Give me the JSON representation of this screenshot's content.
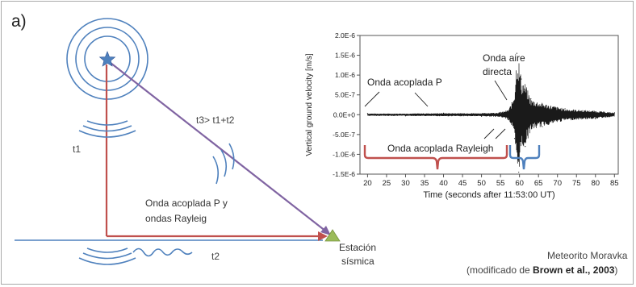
{
  "panel_label": "a)",
  "left_diagram": {
    "t1_label": "t1",
    "t3_label": "t3> t1+t2",
    "t2_label": "t2",
    "wave_label_line1": "Onda acoplada P y",
    "wave_label_line2": "ondas Rayleig",
    "station_line1": "Estación",
    "station_line2": "sísmica"
  },
  "seismogram": {
    "ylabel": "Vertical ground velocity [m/s]",
    "xlabel": "Time (seconds after 11:53:00 UT)",
    "annotation_p": "Onda acoplada P",
    "annotation_air_line1": "Onda aire",
    "annotation_air_line2": "directa",
    "annotation_rayleigh": "Onda acoplada Rayleigh"
  },
  "credit": {
    "line1": "Meteorito Moravka",
    "line2_prefix": "(modificado de ",
    "line2_bold": "Brown et al., 2003",
    "line2_suffix": ")"
  },
  "colors": {
    "path_red": "#c0504d",
    "path_purple": "#8064a2",
    "wave_blue": "#4f81bd",
    "station_green": "#9bbb59",
    "trace": "#1a1a1a"
  },
  "chart_data": {
    "type": "line",
    "xlim": [
      18,
      86
    ],
    "ylim": [
      -1.5e-06,
      2e-06
    ],
    "xticks": [
      20,
      25,
      30,
      35,
      40,
      45,
      50,
      55,
      60,
      65,
      70,
      75,
      80,
      85
    ],
    "xtick_labels": [
      "20",
      "25",
      "30",
      "35",
      "40",
      "45",
      "50",
      "55",
      "60",
      "65",
      "70",
      "75",
      "80",
      "85"
    ],
    "yticks": [
      2e-06,
      1.5e-06,
      1e-06,
      5e-07,
      0,
      -5e-07,
      -1e-06,
      -1.5e-06
    ],
    "ytick_labels": [
      "2.0E-6",
      "1.5E-6",
      "1.0E-6",
      "5.0E-7",
      "0.0E+0",
      "-5.0E-7",
      "-1.0E-6",
      "-1.5E-6"
    ],
    "series": [
      {
        "values": [
          {
            "x": 20,
            "y": 3e-08
          },
          {
            "x": 30,
            "y": -3e-08
          },
          {
            "x": 40,
            "y": 4e-08
          },
          {
            "x": 50,
            "y": -4e-08
          },
          {
            "x": 55,
            "y": 6e-08
          },
          {
            "x": 57,
            "y": -1.2e-07
          },
          {
            "x": 58,
            "y": 3e-07
          },
          {
            "x": 58.7,
            "y": -6e-07
          },
          {
            "x": 59.3,
            "y": 1.55e-06
          },
          {
            "x": 59.8,
            "y": -1.45e-06
          },
          {
            "x": 60.5,
            "y": 9e-07
          },
          {
            "x": 61.5,
            "y": -8e-07
          },
          {
            "x": 63,
            "y": 4e-07
          },
          {
            "x": 66,
            "y": -3e-07
          },
          {
            "x": 72,
            "y": 1.5e-07
          },
          {
            "x": 80,
            "y": -1e-07
          },
          {
            "x": 85,
            "y": 5e-08
          }
        ]
      }
    ]
  }
}
